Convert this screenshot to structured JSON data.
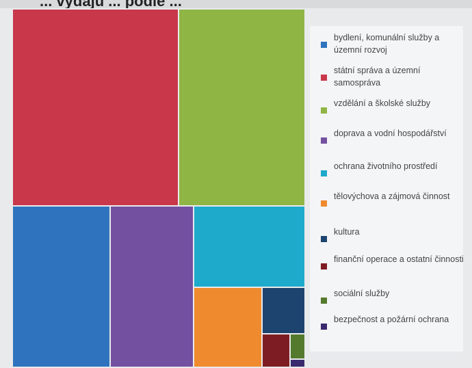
{
  "title": "... výdajů ... podle ... ",
  "chart_data": {
    "type": "treemap",
    "title": "",
    "legend_position": "right",
    "series": [
      {
        "name": "bydlení, komunální služby a územní rozvoj",
        "color": "#2f73be",
        "value": 55
      },
      {
        "name": "státní správa a územní samospráva",
        "color": "#c8374a",
        "value": 100
      },
      {
        "name": "vzdělání a školské služby",
        "color": "#8fb544",
        "value": 73
      },
      {
        "name": "doprava a vodní hospodářství",
        "color": "#7450a0",
        "value": 47
      },
      {
        "name": "ochrana životního prostředí",
        "color": "#1eaacb",
        "value": 29
      },
      {
        "name": "tělovýchova a zájmová činnost",
        "color": "#f08a2e",
        "value": 22
      },
      {
        "name": "kultura",
        "color": "#1d446f",
        "value": 12
      },
      {
        "name": "finanční operace a ostatní činnosti",
        "color": "#7d1d23",
        "value": 7
      },
      {
        "name": "sociální služby",
        "color": "#547a2d",
        "value": 3.3
      },
      {
        "name": "bezpečnost a požární ochrana",
        "color": "#3a2a6e",
        "value": 1.4
      }
    ]
  }
}
